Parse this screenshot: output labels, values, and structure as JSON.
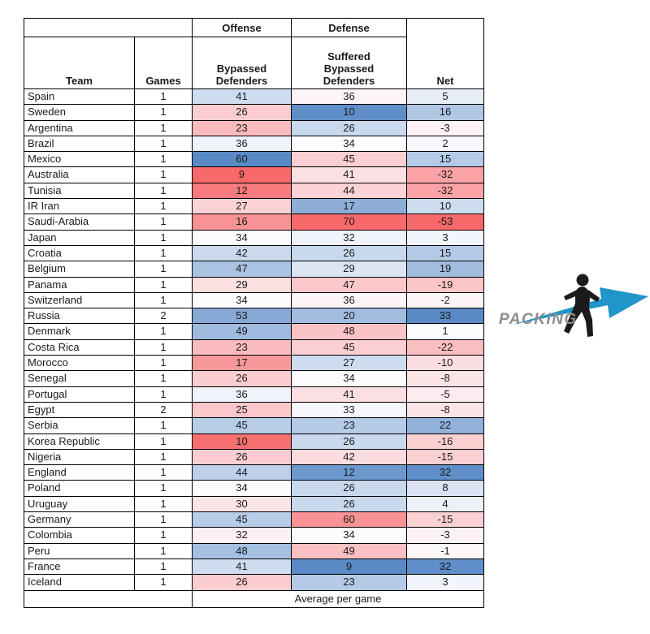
{
  "labels": {
    "offense_group": "Offense",
    "defense_group": "Defense",
    "footer": "Average per game"
  },
  "header_display": {
    "team": "Team",
    "games": "Games",
    "offense_col": "Bypassed\nDefenders",
    "defense_col": "Suffered\nBypassed\nDefenders",
    "net": "Net"
  },
  "chart_data": {
    "type": "table",
    "columns": [
      "Team",
      "Games",
      "Bypassed Defenders",
      "Suffered Bypassed Defenders",
      "Net"
    ],
    "column_groups": {
      "Bypassed Defenders": "Offense",
      "Suffered Bypassed Defenders": "Defense"
    },
    "footer_note": "Average per game",
    "rows": [
      [
        "Spain",
        1,
        41,
        36,
        5
      ],
      [
        "Sweden",
        1,
        26,
        10,
        16
      ],
      [
        "Argentina",
        1,
        23,
        26,
        -3
      ],
      [
        "Brazil",
        1,
        36,
        34,
        2
      ],
      [
        "Mexico",
        1,
        60,
        45,
        15
      ],
      [
        "Australia",
        1,
        9,
        41,
        -32
      ],
      [
        "Tunisia",
        1,
        12,
        44,
        -32
      ],
      [
        "IR Iran",
        1,
        27,
        17,
        10
      ],
      [
        "Saudi-Arabia",
        1,
        16,
        70,
        -53
      ],
      [
        "Japan",
        1,
        34,
        32,
        3
      ],
      [
        "Croatia",
        1,
        42,
        26,
        15
      ],
      [
        "Belgium",
        1,
        47,
        29,
        19
      ],
      [
        "Panama",
        1,
        29,
        47,
        -19
      ],
      [
        "Switzerland",
        1,
        34,
        36,
        -2
      ],
      [
        "Russia",
        2,
        53,
        20,
        33
      ],
      [
        "Denmark",
        1,
        49,
        48,
        1
      ],
      [
        "Costa Rica",
        1,
        23,
        45,
        -22
      ],
      [
        "Morocco",
        1,
        17,
        27,
        -10
      ],
      [
        "Senegal",
        1,
        26,
        34,
        -8
      ],
      [
        "Portugal",
        1,
        36,
        41,
        -5
      ],
      [
        "Egypt",
        2,
        25,
        33,
        -8
      ],
      [
        "Serbia",
        1,
        45,
        23,
        22
      ],
      [
        "Korea Republic",
        1,
        10,
        26,
        -16
      ],
      [
        "Nigeria",
        1,
        26,
        42,
        -15
      ],
      [
        "England",
        1,
        44,
        12,
        32
      ],
      [
        "Poland",
        1,
        34,
        26,
        8
      ],
      [
        "Uruguay",
        1,
        30,
        26,
        4
      ],
      [
        "Germany",
        1,
        45,
        60,
        -15
      ],
      [
        "Colombia",
        1,
        32,
        34,
        -3
      ],
      [
        "Peru",
        1,
        48,
        49,
        -1
      ],
      [
        "France",
        1,
        41,
        9,
        32
      ],
      [
        "Iceland",
        1,
        26,
        23,
        3
      ]
    ]
  },
  "heatmap": {
    "colors": {
      "red": "#F8696B",
      "white": "#FCFCFF",
      "blue": "#5A8AC6"
    },
    "scales": {
      "offense": {
        "min": 9,
        "mid": 34,
        "max": 60,
        "high": "blue"
      },
      "defense": {
        "min": 9,
        "mid": 34,
        "max": 70,
        "high": "red"
      },
      "net": {
        "min": -53,
        "mid": 1,
        "max": 33,
        "high": "blue"
      }
    }
  },
  "logo": {
    "text": "PACKING",
    "arrow_color": "#2095C8",
    "silhouette_color": "#1b1b1b",
    "text_color": "#8c8c8c"
  }
}
